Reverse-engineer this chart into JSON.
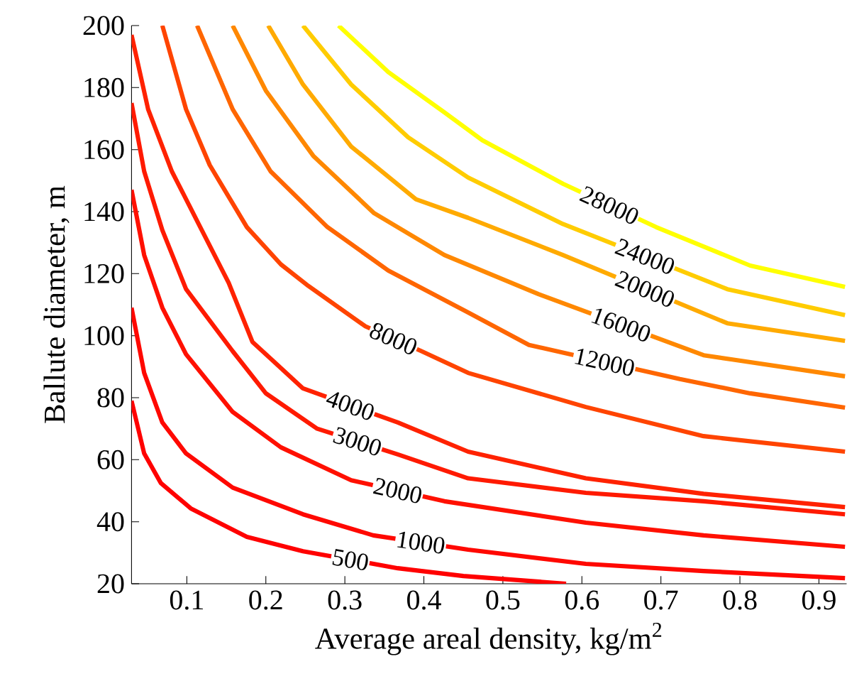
{
  "chart_data": {
    "type": "line",
    "xlabel": "Average areal density, kg/m$^{2}$",
    "ylabel": "Ballute diameter, m",
    "xlim": [
      0.03,
      0.935
    ],
    "ylim": [
      20,
      200
    ],
    "xticks": [
      0.1,
      0.2,
      0.3,
      0.4,
      0.5,
      0.6,
      0.7,
      0.8,
      0.9
    ],
    "yticks": [
      20,
      40,
      60,
      80,
      100,
      120,
      140,
      160,
      180,
      200
    ],
    "series": [
      {
        "name": "500",
        "color": "#ff0000",
        "x": [
          0.03,
          0.046,
          0.067,
          0.105,
          0.176,
          0.247,
          0.367,
          0.45,
          0.58
        ],
        "values": [
          79,
          62,
          52.5,
          44.3,
          35.1,
          30.5,
          25,
          22.5,
          20
        ]
      },
      {
        "name": "1000",
        "color": "#ff0800",
        "x": [
          0.03,
          0.046,
          0.069,
          0.099,
          0.158,
          0.247,
          0.336,
          0.456,
          0.605,
          0.754,
          0.933
        ],
        "values": [
          109,
          88,
          72,
          62,
          51,
          42.4,
          35.6,
          31,
          26.4,
          24.1,
          21.8
        ]
      },
      {
        "name": "2000",
        "color": "#ff1000",
        "x": [
          0.03,
          0.046,
          0.069,
          0.099,
          0.158,
          0.219,
          0.308,
          0.426,
          0.605,
          0.754,
          0.933
        ],
        "values": [
          147,
          126,
          109,
          94,
          75.4,
          64,
          53.4,
          46.6,
          39.7,
          35.6,
          31.9
        ]
      },
      {
        "name": "3000",
        "color": "#ff1a00",
        "x": [
          0.03,
          0.046,
          0.069,
          0.099,
          0.158,
          0.2,
          0.265,
          0.367,
          0.456,
          0.605,
          0.754,
          0.933
        ],
        "values": [
          175,
          153,
          134,
          115,
          95,
          81.4,
          70,
          61.7,
          54,
          49.3,
          46.6,
          42.4
        ]
      },
      {
        "name": "4000",
        "color": "#ff2200",
        "x": [
          0.03,
          0.051,
          0.081,
          0.117,
          0.153,
          0.183,
          0.247,
          0.367,
          0.456,
          0.605,
          0.754,
          0.933
        ],
        "values": [
          197,
          173,
          153,
          135,
          117,
          98,
          83,
          72,
          62.6,
          54,
          49,
          44.7
        ]
      },
      {
        "name": "8000",
        "color": "#ff4400",
        "x": [
          0.069,
          0.099,
          0.129,
          0.176,
          0.219,
          0.254,
          0.326,
          0.397,
          0.456,
          0.605,
          0.754,
          0.933
        ],
        "values": [
          200,
          173,
          155,
          135,
          123,
          116,
          103,
          95,
          88,
          77,
          67.6,
          62.6
        ]
      },
      {
        "name": "12000",
        "color": "#ff6600",
        "x": [
          0.113,
          0.158,
          0.206,
          0.278,
          0.355,
          0.456,
          0.533,
          0.724,
          0.813,
          0.933
        ],
        "values": [
          200,
          173,
          153,
          135,
          121,
          107.5,
          97,
          86,
          81.4,
          76.8
        ]
      },
      {
        "name": "16000",
        "color": "#ff8800",
        "x": [
          0.158,
          0.2,
          0.26,
          0.337,
          0.426,
          0.545,
          0.754,
          0.933
        ],
        "values": [
          200,
          179,
          158,
          139.5,
          126,
          113.4,
          93.7,
          86.9
        ]
      },
      {
        "name": "20000",
        "color": "#ffaa00",
        "x": [
          0.203,
          0.247,
          0.308,
          0.39,
          0.456,
          0.576,
          0.784,
          0.933
        ],
        "values": [
          200,
          181,
          161,
          144,
          138,
          126,
          104,
          98.3
        ]
      },
      {
        "name": "24000",
        "color": "#ffcc00",
        "x": [
          0.247,
          0.308,
          0.38,
          0.456,
          0.576,
          0.784,
          0.933
        ],
        "values": [
          200,
          181,
          164,
          151,
          136,
          115,
          106.6
        ]
      },
      {
        "name": "28000",
        "color": "#ffff00",
        "x": [
          0.292,
          0.355,
          0.426,
          0.474,
          0.576,
          0.694,
          0.813,
          0.933
        ],
        "values": [
          200,
          185,
          172,
          163,
          149,
          135,
          122.6,
          115.7
        ]
      }
    ]
  }
}
